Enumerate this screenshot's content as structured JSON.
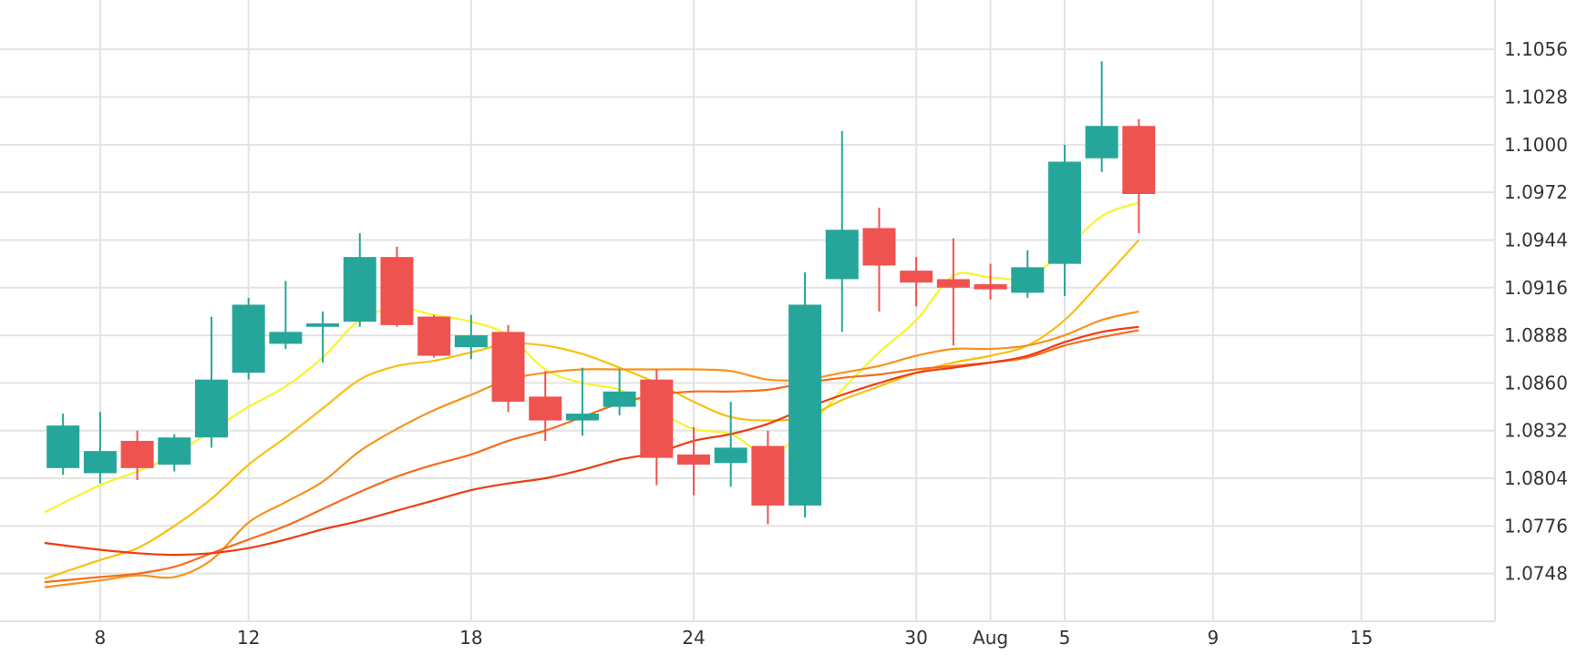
{
  "chart_data": {
    "type": "candlestick",
    "x_tick_labels": [
      {
        "day": 8,
        "label": "8"
      },
      {
        "day": 12,
        "label": "12"
      },
      {
        "day": 18,
        "label": "18"
      },
      {
        "day": 24,
        "label": "24"
      },
      {
        "day": 30,
        "label": "30"
      },
      {
        "day": 32,
        "label": "Aug"
      },
      {
        "day": 34,
        "label": "5"
      },
      {
        "day": 38,
        "label": "9"
      },
      {
        "day": 42,
        "label": "15"
      }
    ],
    "y_tick_labels": [
      "1.0748",
      "1.0776",
      "1.0804",
      "1.0832",
      "1.0860",
      "1.0888",
      "1.0916",
      "1.0944",
      "1.0972",
      "1.1000",
      "1.1028",
      "1.1056"
    ],
    "ylim": [
      1.072,
      1.1085
    ],
    "xlim": [
      5.3,
      45.6
    ],
    "grid": true,
    "y_axis_position": "right",
    "colors": {
      "up": "#26a69a",
      "down": "#ef5350"
    },
    "candles": [
      {
        "day": 7,
        "open": 1.081,
        "high": 1.0842,
        "low": 1.0806,
        "close": 1.0835
      },
      {
        "day": 8,
        "open": 1.0807,
        "high": 1.0843,
        "low": 1.0801,
        "close": 1.082
      },
      {
        "day": 9,
        "open": 1.0826,
        "high": 1.0832,
        "low": 1.0803,
        "close": 1.081
      },
      {
        "day": 10,
        "open": 1.0812,
        "high": 1.083,
        "low": 1.0808,
        "close": 1.0828
      },
      {
        "day": 11,
        "open": 1.0828,
        "high": 1.0899,
        "low": 1.0822,
        "close": 1.0862
      },
      {
        "day": 12,
        "open": 1.0866,
        "high": 1.091,
        "low": 1.0862,
        "close": 1.0906
      },
      {
        "day": 13,
        "open": 1.0883,
        "high": 1.092,
        "low": 1.088,
        "close": 1.089
      },
      {
        "day": 14,
        "open": 1.0893,
        "high": 1.0902,
        "low": 1.0872,
        "close": 1.0895
      },
      {
        "day": 15,
        "open": 1.0896,
        "high": 1.0948,
        "low": 1.0893,
        "close": 1.0934
      },
      {
        "day": 16,
        "open": 1.0934,
        "high": 1.094,
        "low": 1.0893,
        "close": 1.0894
      },
      {
        "day": 17,
        "open": 1.0899,
        "high": 1.09,
        "low": 1.0875,
        "close": 1.0876
      },
      {
        "day": 18,
        "open": 1.0881,
        "high": 1.09,
        "low": 1.0874,
        "close": 1.0888
      },
      {
        "day": 19,
        "open": 1.089,
        "high": 1.0894,
        "low": 1.0843,
        "close": 1.0849
      },
      {
        "day": 20,
        "open": 1.0852,
        "high": 1.0867,
        "low": 1.0826,
        "close": 1.0838
      },
      {
        "day": 21,
        "open": 1.0838,
        "high": 1.0869,
        "low": 1.0829,
        "close": 1.0842
      },
      {
        "day": 22,
        "open": 1.0846,
        "high": 1.0868,
        "low": 1.0841,
        "close": 1.0855
      },
      {
        "day": 23,
        "open": 1.0862,
        "high": 1.0868,
        "low": 1.08,
        "close": 1.0816
      },
      {
        "day": 24,
        "open": 1.0818,
        "high": 1.0834,
        "low": 1.0794,
        "close": 1.0812
      },
      {
        "day": 25,
        "open": 1.0813,
        "high": 1.0849,
        "low": 1.0799,
        "close": 1.0822
      },
      {
        "day": 26,
        "open": 1.0823,
        "high": 1.0832,
        "low": 1.0777,
        "close": 1.0788
      },
      {
        "day": 27,
        "open": 1.0788,
        "high": 1.0925,
        "low": 1.0781,
        "close": 1.0906
      },
      {
        "day": 28,
        "open": 1.0921,
        "high": 1.1008,
        "low": 1.089,
        "close": 1.095
      },
      {
        "day": 29,
        "open": 1.0951,
        "high": 1.0963,
        "low": 1.0902,
        "close": 1.0929
      },
      {
        "day": 30,
        "open": 1.0926,
        "high": 1.0934,
        "low": 1.0905,
        "close": 1.0919
      },
      {
        "day": 31,
        "open": 1.0921,
        "high": 1.0945,
        "low": 1.0882,
        "close": 1.0916
      },
      {
        "day": 32,
        "open": 1.0918,
        "high": 1.093,
        "low": 1.0909,
        "close": 1.0915
      },
      {
        "day": 33,
        "open": 1.0913,
        "high": 1.0938,
        "low": 1.091,
        "close": 1.0928
      },
      {
        "day": 34,
        "open": 1.093,
        "high": 1.1,
        "low": 1.0911,
        "close": 1.099
      },
      {
        "day": 35,
        "open": 1.0992,
        "high": 1.1049,
        "low": 1.0984,
        "close": 1.1011
      },
      {
        "day": 36,
        "open": 1.1011,
        "high": 1.1015,
        "low": 1.0948,
        "close": 1.0971
      }
    ],
    "moving_averages": [
      {
        "color": "#f5f530",
        "points": [
          [
            6.5,
            1.0784
          ],
          [
            8,
            1.08
          ],
          [
            9,
            1.0808
          ],
          [
            10,
            1.0818
          ],
          [
            11,
            1.0832
          ],
          [
            12,
            1.0846
          ],
          [
            13,
            1.0858
          ],
          [
            14,
            1.0875
          ],
          [
            15,
            1.0897
          ],
          [
            16,
            1.0904
          ],
          [
            17,
            1.09
          ],
          [
            18,
            1.0896
          ],
          [
            19,
            1.0888
          ],
          [
            20,
            1.0868
          ],
          [
            21,
            1.086
          ],
          [
            22,
            1.0856
          ],
          [
            23,
            1.0844
          ],
          [
            24,
            1.0833
          ],
          [
            25,
            1.083
          ],
          [
            26,
            1.0818
          ],
          [
            27,
            1.0832
          ],
          [
            28,
            1.0856
          ],
          [
            29,
            1.0878
          ],
          [
            30,
            1.0897
          ],
          [
            31,
            1.0923
          ],
          [
            32,
            1.0922
          ],
          [
            33,
            1.0922
          ],
          [
            34,
            1.0938
          ],
          [
            35,
            1.0958
          ],
          [
            36,
            1.0966
          ]
        ]
      },
      {
        "color": "#f9c00f",
        "points": [
          [
            6.5,
            1.0745
          ],
          [
            8,
            1.0756
          ],
          [
            9,
            1.0763
          ],
          [
            10,
            1.0776
          ],
          [
            11,
            1.0792
          ],
          [
            12,
            1.0812
          ],
          [
            13,
            1.0828
          ],
          [
            14,
            1.0845
          ],
          [
            15,
            1.0862
          ],
          [
            16,
            1.087
          ],
          [
            17,
            1.0873
          ],
          [
            18,
            1.0878
          ],
          [
            19,
            1.0883
          ],
          [
            20,
            1.0882
          ],
          [
            21,
            1.0877
          ],
          [
            22,
            1.0869
          ],
          [
            23,
            1.086
          ],
          [
            24,
            1.0849
          ],
          [
            25,
            1.084
          ],
          [
            26,
            1.0838
          ],
          [
            27,
            1.084
          ],
          [
            28,
            1.085
          ],
          [
            29,
            1.0858
          ],
          [
            30,
            1.0866
          ],
          [
            31,
            1.0872
          ],
          [
            32,
            1.0876
          ],
          [
            33,
            1.0882
          ],
          [
            34,
            1.0897
          ],
          [
            35,
            1.092
          ],
          [
            36,
            1.0944
          ]
        ]
      },
      {
        "color": "#f7941d",
        "points": [
          [
            6.5,
            1.074
          ],
          [
            8,
            1.0744
          ],
          [
            9,
            1.0747
          ],
          [
            10,
            1.0746
          ],
          [
            11,
            1.0756
          ],
          [
            12,
            1.0778
          ],
          [
            13,
            1.079
          ],
          [
            14,
            1.0802
          ],
          [
            15,
            1.082
          ],
          [
            16,
            1.0833
          ],
          [
            17,
            1.0844
          ],
          [
            18,
            1.0853
          ],
          [
            19,
            1.0862
          ],
          [
            20,
            1.0866
          ],
          [
            21,
            1.0868
          ],
          [
            22,
            1.0868
          ],
          [
            23,
            1.0868
          ],
          [
            24,
            1.0868
          ],
          [
            25,
            1.0867
          ],
          [
            26,
            1.0862
          ],
          [
            27,
            1.0862
          ],
          [
            28,
            1.0866
          ],
          [
            29,
            1.087
          ],
          [
            30,
            1.0876
          ],
          [
            31,
            1.088
          ],
          [
            32,
            1.088
          ],
          [
            33,
            1.0882
          ],
          [
            34,
            1.0888
          ],
          [
            35,
            1.0897
          ],
          [
            36,
            1.0902
          ]
        ]
      },
      {
        "color": "#f76b1c",
        "points": [
          [
            6.5,
            1.0743
          ],
          [
            8,
            1.0746
          ],
          [
            9,
            1.0748
          ],
          [
            10,
            1.0752
          ],
          [
            11,
            1.076
          ],
          [
            12,
            1.0768
          ],
          [
            13,
            1.0776
          ],
          [
            14,
            1.0786
          ],
          [
            15,
            1.0796
          ],
          [
            16,
            1.0805
          ],
          [
            17,
            1.0812
          ],
          [
            18,
            1.0818
          ],
          [
            19,
            1.0826
          ],
          [
            20,
            1.0832
          ],
          [
            21,
            1.084
          ],
          [
            22,
            1.0848
          ],
          [
            23,
            1.0853
          ],
          [
            24,
            1.0855
          ],
          [
            25,
            1.0855
          ],
          [
            26,
            1.0856
          ],
          [
            27,
            1.086
          ],
          [
            28,
            1.0863
          ],
          [
            29,
            1.0865
          ],
          [
            30,
            1.0868
          ],
          [
            31,
            1.087
          ],
          [
            32,
            1.0872
          ],
          [
            33,
            1.0875
          ],
          [
            34,
            1.0882
          ],
          [
            35,
            1.0887
          ],
          [
            36,
            1.0891
          ]
        ]
      },
      {
        "color": "#f03c0f",
        "points": [
          [
            6.5,
            1.0766
          ],
          [
            8,
            1.0762
          ],
          [
            9,
            1.076
          ],
          [
            10,
            1.0759
          ],
          [
            11,
            1.076
          ],
          [
            12,
            1.0763
          ],
          [
            13,
            1.0768
          ],
          [
            14,
            1.0774
          ],
          [
            15,
            1.0779
          ],
          [
            16,
            1.0785
          ],
          [
            17,
            1.0791
          ],
          [
            18,
            1.0797
          ],
          [
            19,
            1.0801
          ],
          [
            20,
            1.0804
          ],
          [
            21,
            1.0809
          ],
          [
            22,
            1.0815
          ],
          [
            23,
            1.0819
          ],
          [
            24,
            1.0826
          ],
          [
            25,
            1.083
          ],
          [
            26,
            1.0836
          ],
          [
            27,
            1.0845
          ],
          [
            28,
            1.0853
          ],
          [
            29,
            1.086
          ],
          [
            30,
            1.0866
          ],
          [
            31,
            1.0869
          ],
          [
            32,
            1.0872
          ],
          [
            33,
            1.0876
          ],
          [
            34,
            1.0884
          ],
          [
            35,
            1.089
          ],
          [
            36,
            1.0893
          ]
        ]
      }
    ]
  }
}
